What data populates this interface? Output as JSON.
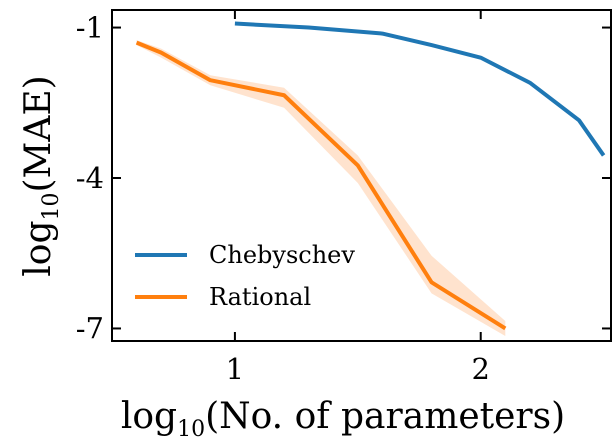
{
  "chart_data": {
    "type": "line",
    "title": "",
    "xlabel": {
      "base": "log",
      "sub": "10",
      "rest": "(No. of parameters)"
    },
    "ylabel": {
      "base": "log",
      "sub": "10",
      "rest": "(MAE)"
    },
    "xlim": [
      0.5,
      2.53
    ],
    "ylim": [
      -7.25,
      -0.65
    ],
    "xticks": [
      1,
      2
    ],
    "xtick_labels": [
      "1",
      "2"
    ],
    "yticks": [
      -1,
      -4,
      -7
    ],
    "ytick_labels": [
      "-1",
      "-4",
      "-7"
    ],
    "grid": false,
    "legend_position": "lower-left",
    "series": [
      {
        "name": "Chebyschev",
        "color": "#1f77b4",
        "x": [
          1.0,
          1.3,
          1.6,
          1.8,
          2.0,
          2.2,
          2.4,
          2.5
        ],
        "y": [
          -0.92,
          -1.0,
          -1.12,
          -1.35,
          -1.6,
          -2.1,
          -2.85,
          -3.55
        ]
      },
      {
        "name": "Rational",
        "color": "#ff7f0e",
        "band_color": "#ffdcc2",
        "x": [
          0.6,
          0.7,
          0.9,
          1.2,
          1.5,
          1.8,
          2.1
        ],
        "y": [
          -1.3,
          -1.5,
          -2.05,
          -2.35,
          -3.75,
          -6.08,
          -7.0
        ],
        "lower": [
          -1.35,
          -1.6,
          -2.15,
          -2.6,
          -4.1,
          -6.3,
          -7.15
        ],
        "upper": [
          -1.25,
          -1.42,
          -1.95,
          -2.2,
          -3.55,
          -5.55,
          -6.85
        ]
      }
    ]
  }
}
